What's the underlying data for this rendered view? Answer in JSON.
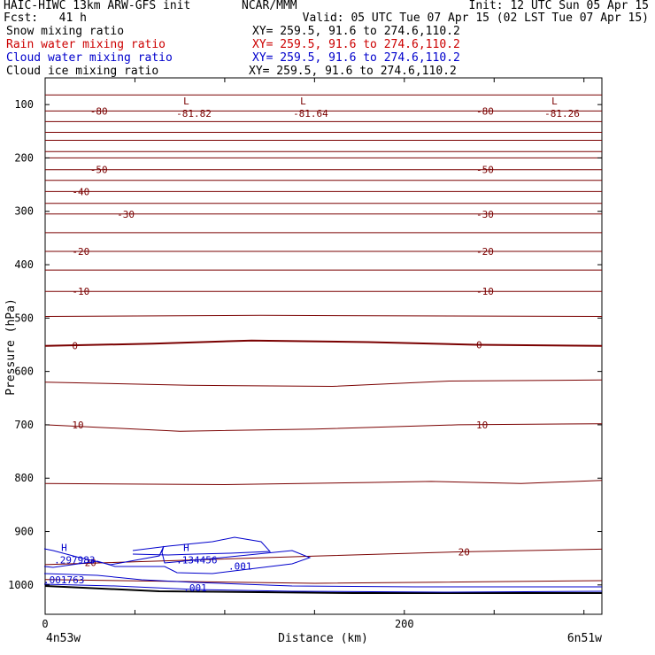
{
  "header": {
    "title": "HAIC-HIWC 13km ARW-GFS init",
    "org": "NCAR/MMM",
    "init": "Init: 12 UTC Sun 05 Apr 15",
    "fcst": "Fcst:   41 h",
    "valid": "Valid: 05 UTC Tue 07 Apr 15 (02 LST Tue 07 Apr 15)"
  },
  "fields": [
    {
      "name": "Snow mixing ratio",
      "xy": "XY= 259.5, 91.6 to 274.6,110.2",
      "color": "#000000"
    },
    {
      "name": "Rain water mixing ratio",
      "xy": "XY= 259.5, 91.6 to 274.6,110.2",
      "color": "#cc0000"
    },
    {
      "name": "Cloud water mixing ratio",
      "xy": "XY= 259.5, 91.6 to 274.6,110.2",
      "color": "#0000cc"
    },
    {
      "name": "Cloud ice mixing ratio",
      "xy": "XY= 259.5, 91.6 to 274.6,110.2",
      "color": "#000000"
    }
  ],
  "chart_data": {
    "type": "line",
    "xlabel": "Distance (km)",
    "ylabel": "Pressure (hPa)",
    "xlim": [
      0,
      310
    ],
    "ylim": [
      1055,
      50
    ],
    "x_ticks": [
      0,
      200
    ],
    "x_tick_labels": [
      "0",
      "200"
    ],
    "y_ticks": [
      100,
      200,
      300,
      400,
      500,
      600,
      700,
      800,
      900,
      1000
    ],
    "endpoint_labels": {
      "left": "4n53w",
      "right": "6n51w"
    },
    "temperature_color": "#7a0000",
    "cloud_color": "#0000cc",
    "temperature_contours": [
      {
        "value": -85,
        "x": [
          0,
          310
        ],
        "p": [
          82,
          82
        ]
      },
      {
        "value": -80,
        "x": [
          0,
          310
        ],
        "p": [
          112,
          112
        ]
      },
      {
        "value": -75,
        "x": [
          0,
          310
        ],
        "p": [
          132,
          132
        ]
      },
      {
        "value": -70,
        "x": [
          0,
          310
        ],
        "p": [
          152,
          152
        ]
      },
      {
        "value": -65,
        "x": [
          0,
          310
        ],
        "p": [
          167,
          167
        ]
      },
      {
        "value": -60,
        "x": [
          0,
          310
        ],
        "p": [
          188,
          188
        ]
      },
      {
        "value": -55,
        "x": [
          0,
          310
        ],
        "p": [
          200,
          200
        ]
      },
      {
        "value": -50,
        "x": [
          0,
          310
        ],
        "p": [
          222,
          222
        ]
      },
      {
        "value": -45,
        "x": [
          0,
          310
        ],
        "p": [
          242,
          242
        ]
      },
      {
        "value": -40,
        "x": [
          0,
          310
        ],
        "p": [
          263,
          263
        ]
      },
      {
        "value": -35,
        "x": [
          0,
          310
        ],
        "p": [
          285,
          285
        ]
      },
      {
        "value": -30,
        "x": [
          0,
          310
        ],
        "p": [
          305,
          305
        ]
      },
      {
        "value": -25,
        "x": [
          0,
          310
        ],
        "p": [
          340,
          340
        ]
      },
      {
        "value": -20,
        "x": [
          0,
          310
        ],
        "p": [
          375,
          375
        ]
      },
      {
        "value": -15,
        "x": [
          0,
          310
        ],
        "p": [
          410,
          410
        ]
      },
      {
        "value": -10,
        "x": [
          0,
          310
        ],
        "p": [
          450,
          450
        ]
      },
      {
        "value": -5,
        "x": [
          0,
          120,
          310
        ],
        "p": [
          497,
          495,
          497
        ]
      },
      {
        "value": 0,
        "x": [
          0,
          60,
          115,
          180,
          240,
          310
        ],
        "p": [
          552,
          548,
          542,
          545,
          550,
          552
        ]
      },
      {
        "value": 5,
        "x": [
          0,
          80,
          160,
          225,
          310
        ],
        "p": [
          620,
          626,
          628,
          618,
          616
        ]
      },
      {
        "value": 10,
        "x": [
          0,
          75,
          150,
          230,
          310
        ],
        "p": [
          700,
          712,
          708,
          700,
          698
        ]
      },
      {
        "value": 15,
        "x": [
          0,
          100,
          180,
          215,
          265,
          310
        ],
        "p": [
          810,
          812,
          808,
          806,
          810,
          804
        ]
      },
      {
        "value": 20,
        "x": [
          0,
          150,
          230,
          310
        ],
        "p": [
          962,
          946,
          938,
          933
        ]
      },
      {
        "value": 25,
        "x": [
          0,
          150,
          310
        ],
        "p": [
          990,
          997,
          992
        ]
      }
    ],
    "temperature_labels": [
      {
        "text": "-80",
        "x": 25,
        "p": 112
      },
      {
        "text": "-80",
        "x": 240,
        "p": 112
      },
      {
        "text": "-50",
        "x": 25,
        "p": 222
      },
      {
        "text": "-50",
        "x": 240,
        "p": 222
      },
      {
        "text": "-40",
        "x": 15,
        "p": 263
      },
      {
        "text": "-30",
        "x": 40,
        "p": 305
      },
      {
        "text": "-30",
        "x": 240,
        "p": 305
      },
      {
        "text": "-20",
        "x": 15,
        "p": 375
      },
      {
        "text": "-20",
        "x": 240,
        "p": 375
      },
      {
        "text": "-10",
        "x": 15,
        "p": 450
      },
      {
        "text": "-10",
        "x": 240,
        "p": 450
      },
      {
        "text": "0",
        "x": 15,
        "p": 552
      },
      {
        "text": "0",
        "x": 240,
        "p": 550
      },
      {
        "text": "10",
        "x": 15,
        "p": 700
      },
      {
        "text": "10",
        "x": 240,
        "p": 700
      },
      {
        "text": "20",
        "x": 22,
        "p": 958
      },
      {
        "text": "20",
        "x": 230,
        "p": 938
      }
    ],
    "extrema": [
      {
        "kind": "L",
        "value": "-81.82",
        "x": 75,
        "p": 90
      },
      {
        "kind": "L",
        "value": "-81.64",
        "x": 140,
        "p": 90
      },
      {
        "kind": "L",
        "value": "-81.26",
        "x": 280,
        "p": 90
      }
    ],
    "cloud_water": [
      {
        "label": ".297983",
        "kind": "H",
        "x": 5,
        "p": 953
      },
      {
        "label": ".134456",
        "kind": "H",
        "x": 73,
        "p": 953
      },
      {
        "label": ".001",
        "x": 102,
        "p": 965
      },
      {
        "label": ".001",
        "x": 77,
        "p": 1005
      },
      {
        "label": ".001763",
        "x": -1,
        "p": 990
      }
    ]
  }
}
